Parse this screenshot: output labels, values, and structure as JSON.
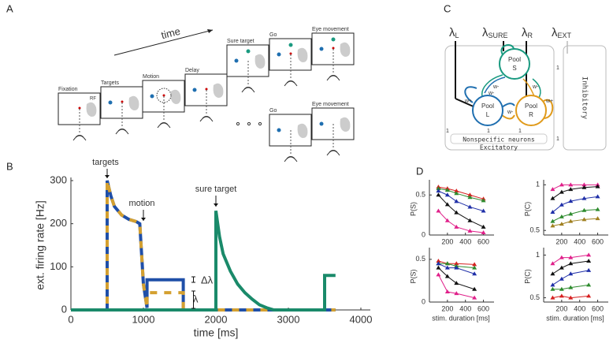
{
  "panel_labels": [
    "A",
    "B",
    "C",
    "D"
  ],
  "panel_a": {
    "time_label": "time",
    "rf_label": "RF",
    "stages": [
      "Fixation",
      "Targets",
      "Motion",
      "Delay",
      "Sure target",
      "Go",
      "Eye movement"
    ],
    "alt_stages": [
      "Go",
      "Eye movement"
    ]
  },
  "panel_c": {
    "inputs": [
      {
        "symbol": "λ",
        "sub": "L"
      },
      {
        "symbol": "λ",
        "sub": "SURE"
      },
      {
        "symbol": "λ",
        "sub": "R"
      },
      {
        "symbol": "λ",
        "sub": "EXT"
      }
    ],
    "pools": [
      [
        "Pool",
        "S"
      ],
      [
        "Pool",
        "L"
      ],
      [
        "Pool",
        "R"
      ]
    ],
    "w_plus": "w+",
    "w_minus": "w-",
    "nonspecific": "Nonspecific neurons",
    "excitatory": "Excitatory",
    "inhibitory": "Inhibitory",
    "unit": "1"
  },
  "chart_data": [
    {
      "type": "line",
      "ylabel": "ext. firing rate [Hz]",
      "xlabel": "time [ms]",
      "x": [
        0,
        500,
        500,
        550,
        600,
        700,
        800,
        900,
        950,
        1000,
        1050,
        1050,
        1550,
        1550,
        2000,
        2000,
        2050,
        2100,
        2200,
        2300,
        2400,
        2500,
        2600,
        2700,
        2800,
        3500,
        3500,
        3650
      ],
      "series": [
        {
          "color": "#1f4fa8",
          "dashed": false,
          "values": [
            0,
            0,
            300,
            265,
            240,
            220,
            210,
            205,
            200,
            60,
            5,
            70,
            70,
            0,
            0,
            0,
            0,
            0,
            0,
            0,
            0,
            0,
            0,
            0,
            0,
            0,
            0,
            0
          ]
        },
        {
          "color": "#d4a030",
          "dashed": true,
          "values": [
            0,
            0,
            300,
            265,
            240,
            220,
            210,
            205,
            200,
            60,
            5,
            40,
            40,
            0,
            0,
            0,
            0,
            0,
            0,
            0,
            0,
            0,
            0,
            0,
            0,
            0,
            0,
            0
          ]
        },
        {
          "color": "#1a8a6a",
          "dashed": false,
          "values": [
            0,
            0,
            0,
            0,
            0,
            0,
            0,
            0,
            0,
            0,
            0,
            0,
            0,
            0,
            0,
            230,
            170,
            130,
            90,
            60,
            40,
            25,
            12,
            5,
            0,
            0,
            80,
            80
          ]
        }
      ],
      "xlim": [
        0,
        4000
      ],
      "xticks": [
        0,
        1000,
        2000,
        3000,
        4000
      ],
      "ylim": [
        0,
        300
      ],
      "yticks": [
        0,
        100,
        200,
        300
      ],
      "annotations": [
        "targets",
        "motion",
        "sure target",
        "Δλ",
        "λ"
      ]
    },
    {
      "type": "line",
      "ylabel": "P(S)",
      "x": [
        100,
        200,
        300,
        450,
        600
      ],
      "marker": "triangle",
      "series": [
        {
          "color": "#d62020",
          "values": [
            0.6,
            0.58,
            0.55,
            0.5,
            0.45
          ]
        },
        {
          "color": "#2e8b2e",
          "values": [
            0.58,
            0.56,
            0.52,
            0.47,
            0.43
          ]
        },
        {
          "color": "#1f2fa8",
          "values": [
            0.55,
            0.5,
            0.42,
            0.35,
            0.3
          ]
        },
        {
          "color": "#111111",
          "values": [
            0.5,
            0.38,
            0.28,
            0.18,
            0.1
          ]
        },
        {
          "color": "#e0208a",
          "values": [
            0.3,
            0.18,
            0.1,
            0.05,
            0.03
          ]
        }
      ],
      "xlim": [
        0,
        700
      ],
      "xticks": [
        200,
        400,
        600
      ],
      "ylim": [
        0,
        0.65
      ],
      "yticks": [
        0,
        0.5
      ]
    },
    {
      "type": "line",
      "ylabel": "P(C)",
      "x": [
        100,
        200,
        300,
        450,
        600
      ],
      "marker": "triangle",
      "series": [
        {
          "color": "#e0208a",
          "values": [
            0.95,
            1,
            1,
            1,
            1
          ]
        },
        {
          "color": "#111111",
          "values": [
            0.85,
            0.92,
            0.95,
            0.97,
            0.98
          ]
        },
        {
          "color": "#1f2fa8",
          "values": [
            0.7,
            0.78,
            0.82,
            0.85,
            0.87
          ]
        },
        {
          "color": "#2e8b2e",
          "values": [
            0.6,
            0.65,
            0.68,
            0.72,
            0.73
          ]
        },
        {
          "color": "#a08020",
          "values": [
            0.55,
            0.57,
            0.6,
            0.62,
            0.63
          ]
        }
      ],
      "xlim": [
        0,
        700
      ],
      "xticks": [
        200,
        400,
        600
      ],
      "ylim": [
        0.45,
        1.02
      ],
      "yticks": [
        0.5,
        1
      ]
    },
    {
      "type": "line",
      "ylabel": "P(S)",
      "xlabel": "stim. duration [ms]",
      "x": [
        100,
        200,
        300,
        500
      ],
      "marker": "triangle",
      "series": [
        {
          "color": "#d62020",
          "values": [
            0.48,
            0.45,
            0.45,
            0.44
          ]
        },
        {
          "color": "#2e8b2e",
          "values": [
            0.45,
            0.45,
            0.42,
            0.4
          ]
        },
        {
          "color": "#1f2fa8",
          "values": [
            0.45,
            0.4,
            0.4,
            0.33
          ]
        },
        {
          "color": "#111111",
          "values": [
            0.4,
            0.3,
            0.22,
            0.15
          ]
        },
        {
          "color": "#e0208a",
          "values": [
            0.32,
            0.12,
            0.1,
            0.05
          ]
        }
      ],
      "xlim": [
        0,
        700
      ],
      "xticks": [
        200,
        400,
        600
      ],
      "ylim": [
        0,
        0.6
      ],
      "yticks": [
        0,
        0.5
      ]
    },
    {
      "type": "line",
      "ylabel": "P(C)",
      "xlabel": "stim. duration [ms]",
      "x": [
        100,
        200,
        300,
        500
      ],
      "marker": "triangle",
      "series": [
        {
          "color": "#e0208a",
          "values": [
            0.9,
            0.97,
            0.97,
            1
          ]
        },
        {
          "color": "#111111",
          "values": [
            0.78,
            0.85,
            0.9,
            0.93
          ]
        },
        {
          "color": "#1f2fa8",
          "values": [
            0.65,
            0.72,
            0.78,
            0.82
          ]
        },
        {
          "color": "#2e8b2e",
          "values": [
            0.6,
            0.6,
            0.62,
            0.65
          ]
        },
        {
          "color": "#d62020",
          "values": [
            0.5,
            0.52,
            0.5,
            0.52
          ]
        }
      ],
      "xlim": [
        0,
        700
      ],
      "xticks": [
        200,
        400,
        600
      ],
      "ylim": [
        0.45,
        1.05
      ],
      "yticks": [
        0.5,
        1
      ]
    }
  ]
}
